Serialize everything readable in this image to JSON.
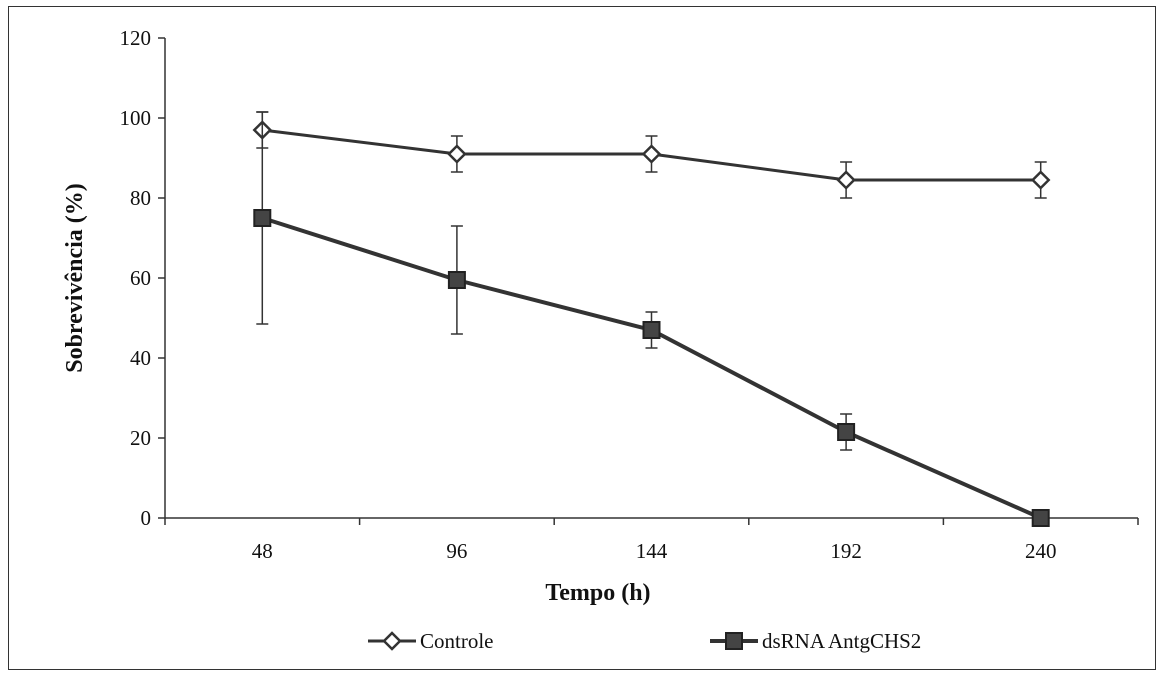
{
  "chart_data": {
    "type": "line",
    "title": "",
    "xlabel": "Tempo (h)",
    "ylabel": "Sobrevivência (%)",
    "categories": [
      "48",
      "96",
      "144",
      "192",
      "240"
    ],
    "x": [
      48,
      96,
      144,
      192,
      240
    ],
    "ylim": [
      0,
      120
    ],
    "yticks": [
      0,
      20,
      40,
      60,
      80,
      100,
      120
    ],
    "grid": false,
    "legend_position": "bottom",
    "series": [
      {
        "name": "Controle",
        "marker": "diamond",
        "color": "#333333",
        "values": [
          97,
          91,
          91,
          84.5,
          84.5
        ],
        "error": [
          4.5,
          4.5,
          4.5,
          4.5,
          4.5
        ]
      },
      {
        "name": "dsRNA AntgCHS2",
        "marker": "square",
        "color": "#333333",
        "values": [
          75,
          59.5,
          47,
          21.5,
          0
        ],
        "error": [
          26.5,
          13.5,
          4.5,
          4.5,
          0
        ]
      }
    ]
  }
}
